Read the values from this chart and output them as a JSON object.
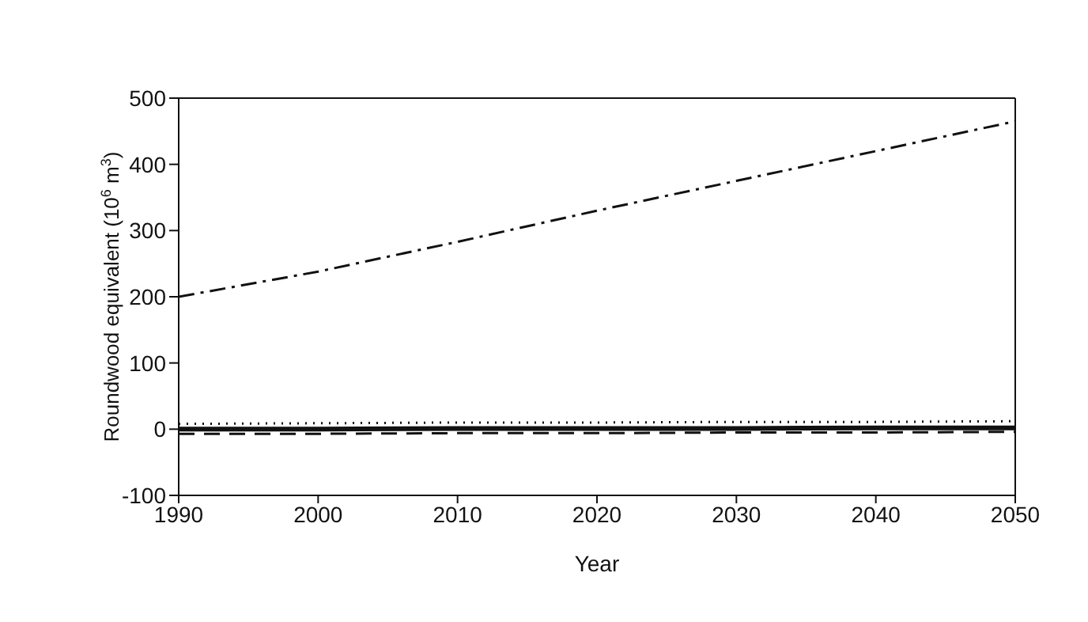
{
  "chart_data": {
    "type": "line",
    "xlabel": "Year",
    "ylabel": "Roundwood equivalent (10$^{6}$ m$^{3}$)",
    "x": [
      1990,
      2000,
      2010,
      2020,
      2030,
      2040,
      2050
    ],
    "xlim": [
      1990,
      2050
    ],
    "xticks": [
      1990,
      2000,
      2010,
      2020,
      2030,
      2040,
      2050
    ],
    "ylim": [
      -100,
      500
    ],
    "yticks": [
      -100,
      0,
      100,
      200,
      300,
      400,
      500
    ],
    "marker": "none",
    "series": [
      {
        "color": "#111111",
        "line_style": "dashdot",
        "values": [
          200,
          238,
          283,
          330,
          375,
          420,
          465
        ]
      },
      {
        "color": "#111111",
        "line_style": "dotted",
        "values": [
          8,
          9,
          10,
          10,
          11,
          11,
          12
        ]
      },
      {
        "color": "#111111",
        "line_style": "solid",
        "values": [
          0,
          0,
          1,
          1,
          1,
          2,
          2
        ]
      },
      {
        "color": "#111111",
        "line_style": "dashed",
        "values": [
          -7,
          -7,
          -6,
          -6,
          -5,
          -5,
          -4
        ]
      }
    ]
  }
}
